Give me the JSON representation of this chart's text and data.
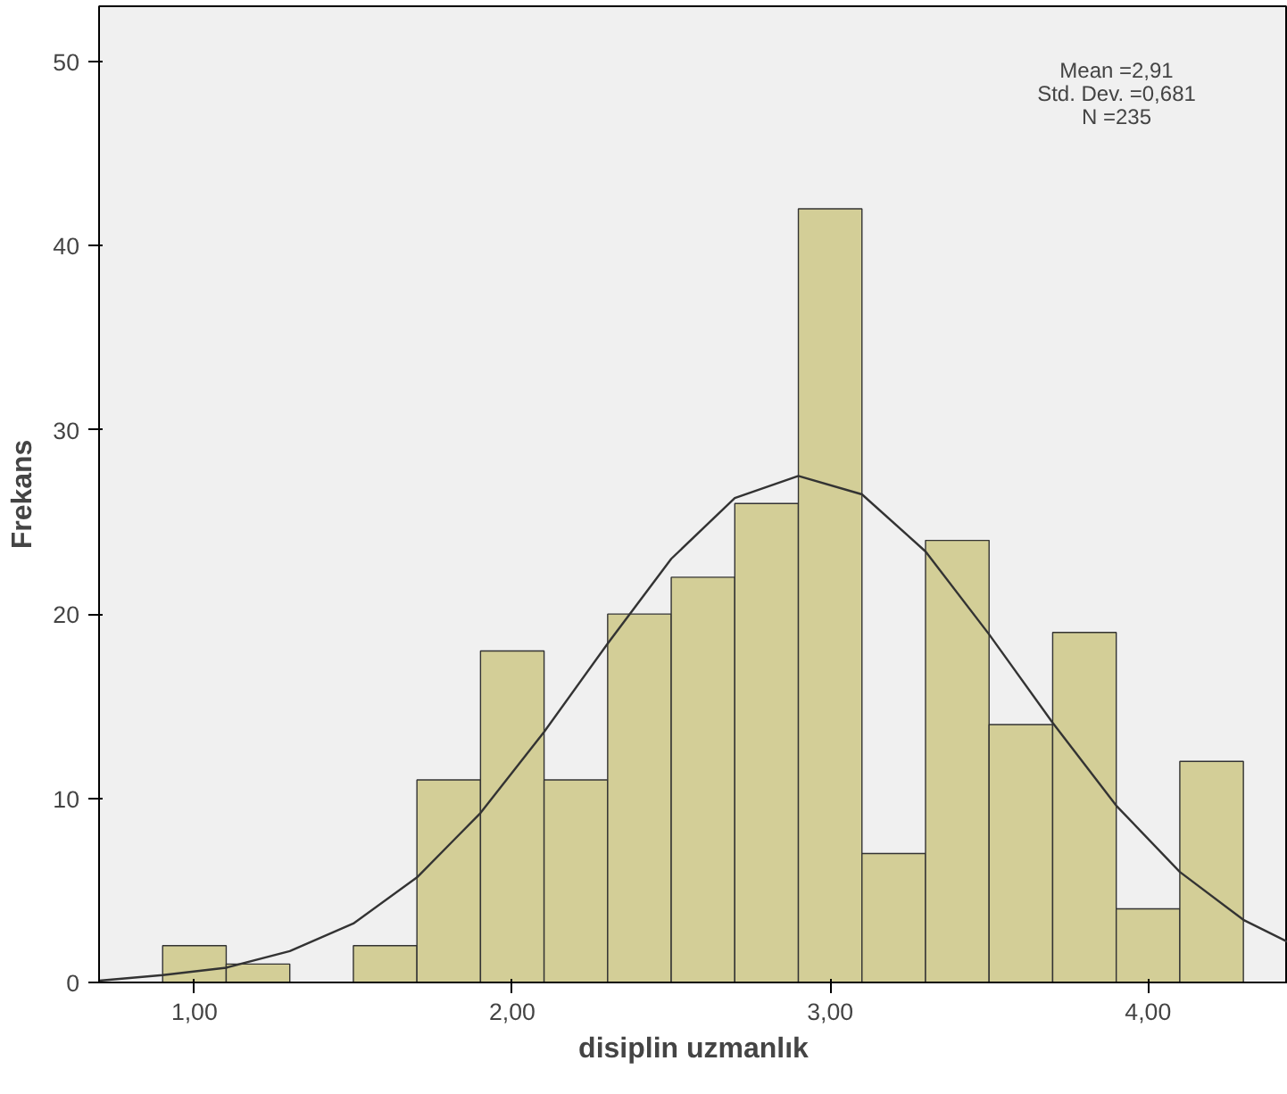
{
  "chart_data": {
    "type": "histogram",
    "xlabel": "disiplin uzmanlık",
    "ylabel": "Frekans",
    "bins": [
      0.9,
      1.1,
      1.3,
      1.5,
      1.7,
      1.9,
      2.1,
      2.3,
      2.5,
      2.7,
      2.9,
      3.1,
      3.3,
      3.5,
      3.7,
      3.9,
      4.1,
      4.3
    ],
    "values": [
      2,
      1,
      0,
      2,
      11,
      18,
      11,
      20,
      22,
      26,
      42,
      7,
      24,
      14,
      19,
      4,
      12
    ],
    "color": "#d3ce97",
    "series": [
      {
        "type": "line",
        "color": "#333333",
        "x": [
          0.7,
          0.9,
          1.1,
          1.3,
          1.5,
          1.7,
          1.9,
          2.1,
          2.3,
          2.5,
          2.7,
          2.9,
          3.1,
          3.3,
          3.5,
          3.7,
          3.9,
          4.1,
          4.3,
          4.44
        ],
        "values": [
          0.1,
          0.4,
          0.8,
          1.7,
          3.2,
          5.7,
          9.2,
          13.6,
          18.4,
          23.0,
          26.3,
          27.5,
          26.5,
          23.4,
          18.9,
          14.1,
          9.6,
          6.0,
          3.4,
          2.2
        ]
      }
    ],
    "xlim": [
      0.7,
      4.44
    ],
    "ylim": [
      0,
      53
    ],
    "xticks": [
      {
        "value": 1,
        "label": "1,00"
      },
      {
        "value": 2,
        "label": "2,00"
      },
      {
        "value": 3,
        "label": "3,00"
      },
      {
        "value": 4,
        "label": "4,00"
      }
    ],
    "yticks": [
      0,
      10,
      20,
      30,
      40,
      50
    ],
    "annotations": [
      "Mean =2,91",
      "Std. Dev. =0,681",
      "N =235"
    ],
    "grid": false
  }
}
